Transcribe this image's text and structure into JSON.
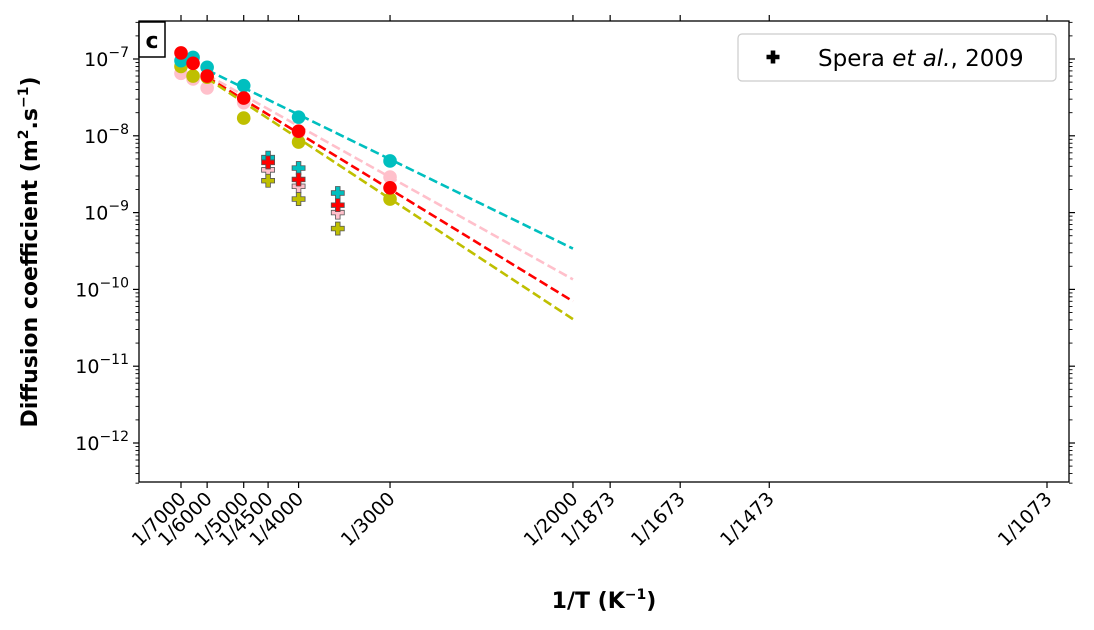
{
  "chart_data": {
    "type": "scatter",
    "panel_label": "c",
    "xlabel": {
      "main": "1/T (K",
      "sup": "−1",
      "tail": ")"
    },
    "ylabel": {
      "main": "Diffusion coefficient (m",
      "sup1": "2",
      "mid": ".s",
      "sup2": "−1",
      "tail": ")"
    },
    "x_axis": {
      "scale": "reciprocal temperature",
      "range_T": [
        7600,
        1050
      ],
      "ticks_T": [
        7000,
        6000,
        5000,
        4500,
        4000,
        3000,
        2000,
        1873,
        1673,
        1473,
        1073
      ],
      "tick_labels": [
        "1/7000",
        "1/6000",
        "1/5000",
        "1/4500",
        "1/4000",
        "1/3000",
        "1/2000",
        "1/1873",
        "1/1673",
        "1/1473",
        "1/1073"
      ]
    },
    "y_axis": {
      "scale": "log",
      "range": [
        3e-13,
        3.2e-07
      ],
      "tick_exponents": [
        -7,
        -8,
        -9,
        -10,
        -11,
        -12
      ],
      "tick_base": "10"
    },
    "legend": {
      "position": "top-right",
      "entries": [
        {
          "marker": "plus",
          "color": "#000000",
          "pre": "Spera ",
          "italic": "et al.",
          "post": ", 2009"
        }
      ]
    },
    "series": [
      {
        "color": "#00bfbf",
        "points": [
          [
            7000,
            9.5e-08
          ],
          [
            6500,
            1.05e-07
          ],
          [
            6000,
            7.8e-08
          ],
          [
            5000,
            4.5e-08
          ],
          [
            4000,
            1.75e-08
          ],
          [
            3000,
            4.7e-09
          ]
        ],
        "fit": [
          [
            6000,
            7.2e-08
          ],
          [
            2000,
            3.4e-10
          ]
        ],
        "spera": [
          [
            4500,
            5.2e-09
          ],
          [
            4000,
            3.8e-09
          ],
          [
            3500,
            1.8e-09
          ]
        ]
      },
      {
        "color": "#ffc0cb",
        "points": [
          [
            7000,
            6.5e-08
          ],
          [
            6500,
            5.5e-08
          ],
          [
            6000,
            4.2e-08
          ],
          [
            5000,
            2.7e-08
          ],
          [
            4000,
            1.1e-08
          ],
          [
            3000,
            2.9e-09
          ]
        ],
        "fit": [
          [
            6000,
            6.2e-08
          ],
          [
            2000,
            1.35e-10
          ]
        ],
        "spera": [
          [
            4500,
            3.6e-09
          ],
          [
            4000,
            2.2e-09
          ],
          [
            3500,
            1e-09
          ]
        ]
      },
      {
        "color": "#ff0000",
        "points": [
          [
            7000,
            1.2e-07
          ],
          [
            6500,
            8.8e-08
          ],
          [
            6000,
            6e-08
          ],
          [
            5000,
            3.1e-08
          ],
          [
            4000,
            1.15e-08
          ],
          [
            3000,
            2.1e-09
          ]
        ],
        "fit": [
          [
            6000,
            5.8e-08
          ],
          [
            2000,
            7e-11
          ]
        ],
        "spera": [
          [
            4500,
            4.5e-09
          ],
          [
            4000,
            2.7e-09
          ],
          [
            3500,
            1.25e-09
          ]
        ]
      },
      {
        "color": "#bfbf00",
        "points": [
          [
            7000,
            8e-08
          ],
          [
            6500,
            6e-08
          ],
          [
            6000,
            5.8e-08
          ],
          [
            5000,
            1.7e-08
          ],
          [
            4000,
            8.3e-09
          ],
          [
            3000,
            1.5e-09
          ]
        ],
        "fit": [
          [
            6000,
            5.6e-08
          ],
          [
            2000,
            4.1e-11
          ]
        ],
        "spera": [
          [
            4500,
            2.6e-09
          ],
          [
            4000,
            1.5e-09
          ],
          [
            3500,
            6.2e-10
          ]
        ]
      }
    ]
  }
}
